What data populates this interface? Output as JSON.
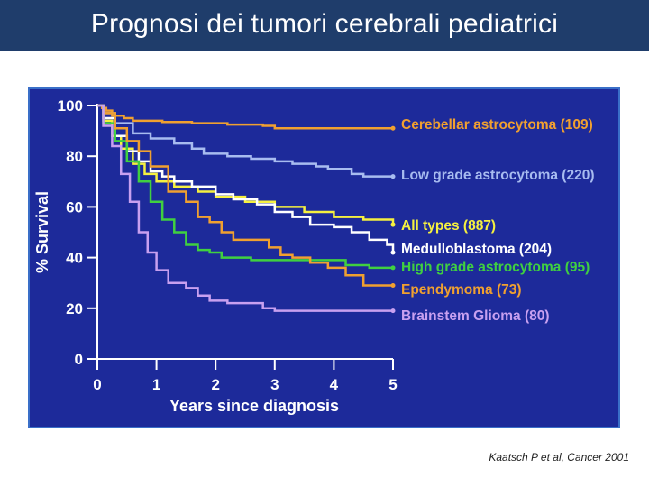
{
  "slide": {
    "title": "Prognosi dei tumori cerebrali pediatrici",
    "citation": "Kaatsch P et al, Cancer 2001"
  },
  "chart_data": {
    "type": "line",
    "xlabel": "Years since diagnosis",
    "ylabel": "% Survival",
    "xlim": [
      0,
      5
    ],
    "ylim": [
      0,
      100
    ],
    "x_ticks": [
      "0",
      "1",
      "2",
      "3",
      "4",
      "5"
    ],
    "y_ticks": [
      "0",
      "20",
      "40",
      "60",
      "80",
      "100"
    ],
    "grid": false,
    "legend_placement": "right, inline labels at line ends",
    "colors": {
      "background": "#1d2a9a",
      "axis": "#ffffff"
    },
    "series": [
      {
        "name": "Cerebellar astrocytoma (109)",
        "color": "#f0a030",
        "points": [
          [
            0,
            100
          ],
          [
            0.08,
            99
          ],
          [
            0.15,
            98
          ],
          [
            0.25,
            96
          ],
          [
            0.45,
            95
          ],
          [
            0.6,
            94
          ],
          [
            1.1,
            93.5
          ],
          [
            1.6,
            93
          ],
          [
            2.2,
            92.5
          ],
          [
            2.8,
            92
          ],
          [
            3.0,
            91
          ],
          [
            4.0,
            91
          ],
          [
            5.0,
            91
          ]
        ]
      },
      {
        "name": "Low grade astrocytoma (220)",
        "color": "#a8bcf0",
        "points": [
          [
            0,
            100
          ],
          [
            0.1,
            97
          ],
          [
            0.3,
            93
          ],
          [
            0.6,
            89
          ],
          [
            0.9,
            87
          ],
          [
            1.3,
            85
          ],
          [
            1.6,
            83
          ],
          [
            1.8,
            81
          ],
          [
            2.2,
            80
          ],
          [
            2.6,
            79
          ],
          [
            3.0,
            78
          ],
          [
            3.3,
            77
          ],
          [
            3.7,
            76
          ],
          [
            3.9,
            75
          ],
          [
            4.3,
            73
          ],
          [
            4.5,
            72
          ],
          [
            4.7,
            72
          ],
          [
            5.0,
            72
          ]
        ]
      },
      {
        "name": "All types (887)",
        "color": "#f5f040",
        "points": [
          [
            0,
            100
          ],
          [
            0.1,
            94
          ],
          [
            0.25,
            88
          ],
          [
            0.4,
            83
          ],
          [
            0.6,
            77
          ],
          [
            0.8,
            73
          ],
          [
            1.0,
            70
          ],
          [
            1.3,
            68
          ],
          [
            1.7,
            66
          ],
          [
            2.0,
            64
          ],
          [
            2.5,
            62
          ],
          [
            3.0,
            60
          ],
          [
            3.5,
            58
          ],
          [
            4.0,
            56
          ],
          [
            4.5,
            55
          ],
          [
            5.0,
            53
          ]
        ]
      },
      {
        "name": "Medulloblastoma (204)",
        "color": "#ffffff",
        "points": [
          [
            0,
            100
          ],
          [
            0.1,
            95
          ],
          [
            0.3,
            88
          ],
          [
            0.5,
            82
          ],
          [
            0.7,
            78
          ],
          [
            0.9,
            74
          ],
          [
            1.1,
            72
          ],
          [
            1.3,
            70
          ],
          [
            1.6,
            68
          ],
          [
            2.0,
            65
          ],
          [
            2.3,
            63
          ],
          [
            2.7,
            61
          ],
          [
            3.0,
            58
          ],
          [
            3.3,
            56
          ],
          [
            3.6,
            53
          ],
          [
            4.0,
            52
          ],
          [
            4.3,
            50
          ],
          [
            4.6,
            47
          ],
          [
            4.9,
            45
          ],
          [
            5.0,
            42
          ]
        ]
      },
      {
        "name": "High grade astrocytoma (95)",
        "color": "#40d040",
        "points": [
          [
            0,
            100
          ],
          [
            0.1,
            93
          ],
          [
            0.3,
            86
          ],
          [
            0.5,
            78
          ],
          [
            0.7,
            70
          ],
          [
            0.9,
            62
          ],
          [
            1.1,
            55
          ],
          [
            1.3,
            50
          ],
          [
            1.5,
            45
          ],
          [
            1.7,
            43
          ],
          [
            1.9,
            42
          ],
          [
            2.1,
            40
          ],
          [
            2.4,
            40
          ],
          [
            2.6,
            39
          ],
          [
            2.9,
            39
          ],
          [
            3.2,
            39
          ],
          [
            3.5,
            39
          ],
          [
            3.8,
            39
          ],
          [
            4.2,
            37
          ],
          [
            4.6,
            36
          ],
          [
            5.0,
            36
          ]
        ]
      },
      {
        "name": "Ependymoma (73)",
        "color": "#f0a030",
        "points": [
          [
            0,
            100
          ],
          [
            0.1,
            97
          ],
          [
            0.3,
            91
          ],
          [
            0.5,
            86
          ],
          [
            0.7,
            82
          ],
          [
            0.9,
            76
          ],
          [
            1.2,
            66
          ],
          [
            1.5,
            62
          ],
          [
            1.7,
            56
          ],
          [
            1.9,
            54
          ],
          [
            2.1,
            50
          ],
          [
            2.3,
            47
          ],
          [
            2.6,
            47
          ],
          [
            2.9,
            44
          ],
          [
            3.1,
            41
          ],
          [
            3.3,
            40
          ],
          [
            3.6,
            38
          ],
          [
            3.9,
            36
          ],
          [
            4.2,
            33
          ],
          [
            4.5,
            29
          ],
          [
            5.0,
            29
          ]
        ]
      },
      {
        "name": "Brainstem Glioma (80)",
        "color": "#c8a0f0",
        "points": [
          [
            0,
            100
          ],
          [
            0.1,
            92
          ],
          [
            0.25,
            84
          ],
          [
            0.4,
            73
          ],
          [
            0.55,
            62
          ],
          [
            0.7,
            50
          ],
          [
            0.85,
            42
          ],
          [
            1.0,
            35
          ],
          [
            1.2,
            30
          ],
          [
            1.5,
            28
          ],
          [
            1.7,
            25
          ],
          [
            1.9,
            23
          ],
          [
            2.2,
            22
          ],
          [
            2.5,
            22
          ],
          [
            2.8,
            20
          ],
          [
            3.0,
            19
          ],
          [
            3.5,
            19
          ],
          [
            4.0,
            19
          ],
          [
            4.5,
            19
          ],
          [
            5.0,
            19
          ]
        ]
      }
    ]
  }
}
